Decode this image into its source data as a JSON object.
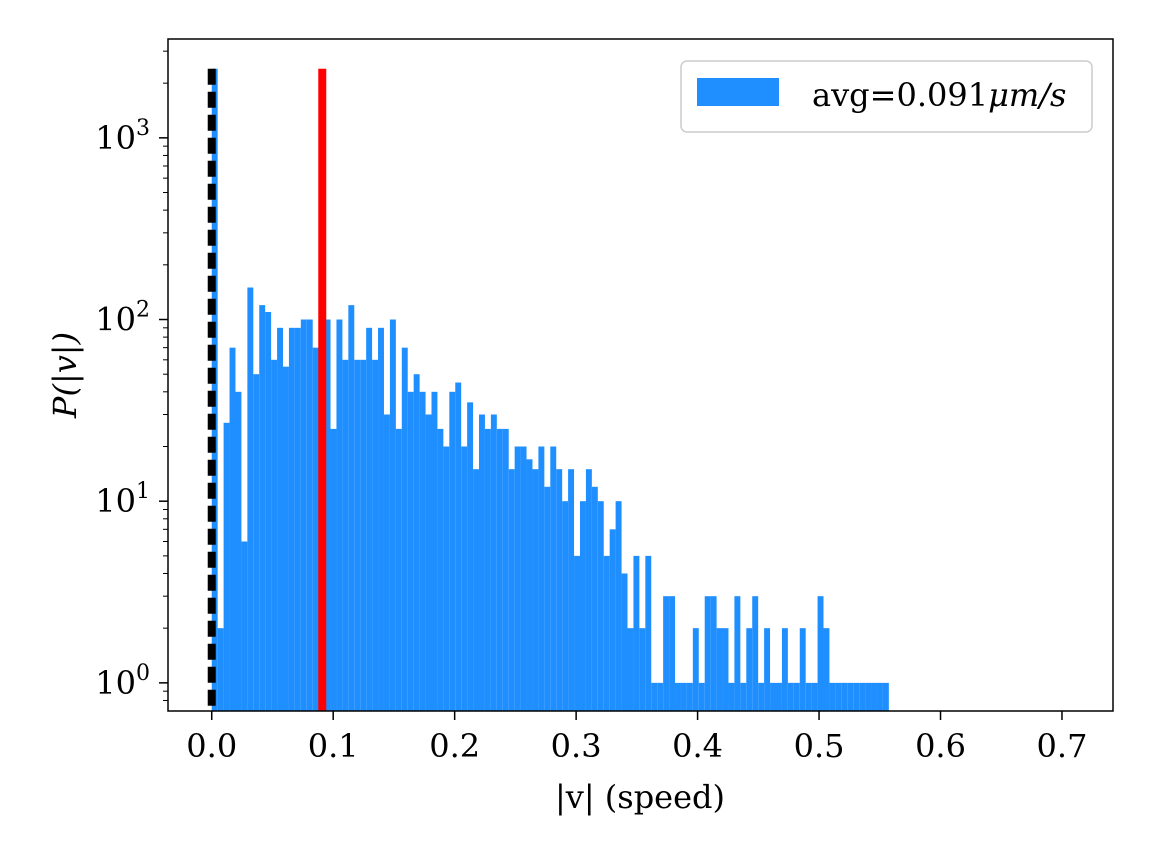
{
  "chart_data": {
    "type": "bar",
    "title": "",
    "xlabel": "|v| (speed)",
    "ylabel": "P(|v|)",
    "xlim": [
      -0.036,
      0.742
    ],
    "ylim": [
      0.7,
      3500
    ],
    "y_scale": "log",
    "grid": false,
    "legend_position": "top-right",
    "x_ticks": [
      {
        "value": 0.0,
        "label": "0.0"
      },
      {
        "value": 0.1,
        "label": "0.1"
      },
      {
        "value": 0.2,
        "label": "0.2"
      },
      {
        "value": 0.3,
        "label": "0.3"
      },
      {
        "value": 0.4,
        "label": "0.4"
      },
      {
        "value": 0.5,
        "label": "0.5"
      },
      {
        "value": 0.6,
        "label": "0.6"
      },
      {
        "value": 0.7,
        "label": "0.7"
      }
    ],
    "y_ticks": [
      {
        "value": 1,
        "base": "10",
        "exp": "0"
      },
      {
        "value": 10,
        "base": "10",
        "exp": "1"
      },
      {
        "value": 100,
        "base": "10",
        "exp": "2"
      },
      {
        "value": 1000,
        "base": "10",
        "exp": "3"
      }
    ],
    "bin_width": 0.00489,
    "x_start": 0.0,
    "series": [
      {
        "name": "avg=0.091μm/s",
        "legend_prefix": "avg=0.091",
        "legend_unit": "μm/s",
        "color": "#1f8fff",
        "values": [
          2400,
          2,
          27,
          70,
          40,
          6,
          150,
          50,
          120,
          110,
          60,
          90,
          55,
          90,
          90,
          100,
          100,
          70,
          55,
          100,
          25,
          100,
          60,
          120,
          60,
          60,
          90,
          60,
          90,
          30,
          100,
          25,
          70,
          40,
          50,
          40,
          30,
          40,
          25,
          20,
          40,
          45,
          20,
          35,
          15,
          30,
          25,
          30,
          25,
          25,
          15,
          20,
          20,
          17,
          15,
          20,
          12,
          20,
          15,
          10,
          15,
          5,
          10,
          15,
          12,
          10,
          5,
          7,
          10,
          4,
          2,
          5,
          2,
          5,
          1,
          1,
          3,
          3,
          1,
          1,
          1,
          2,
          1,
          3,
          3,
          2,
          2,
          1,
          3,
          1,
          2,
          3,
          1,
          2,
          1,
          1,
          2,
          1,
          1,
          2,
          1,
          1,
          3,
          2,
          1,
          1,
          1,
          1,
          1,
          1,
          1,
          1,
          1,
          1
        ]
      }
    ],
    "vlines": [
      {
        "x": 0.0,
        "color": "#000000",
        "style": "dashed"
      },
      {
        "x": 0.091,
        "color": "#ff0000",
        "style": "solid"
      }
    ]
  }
}
